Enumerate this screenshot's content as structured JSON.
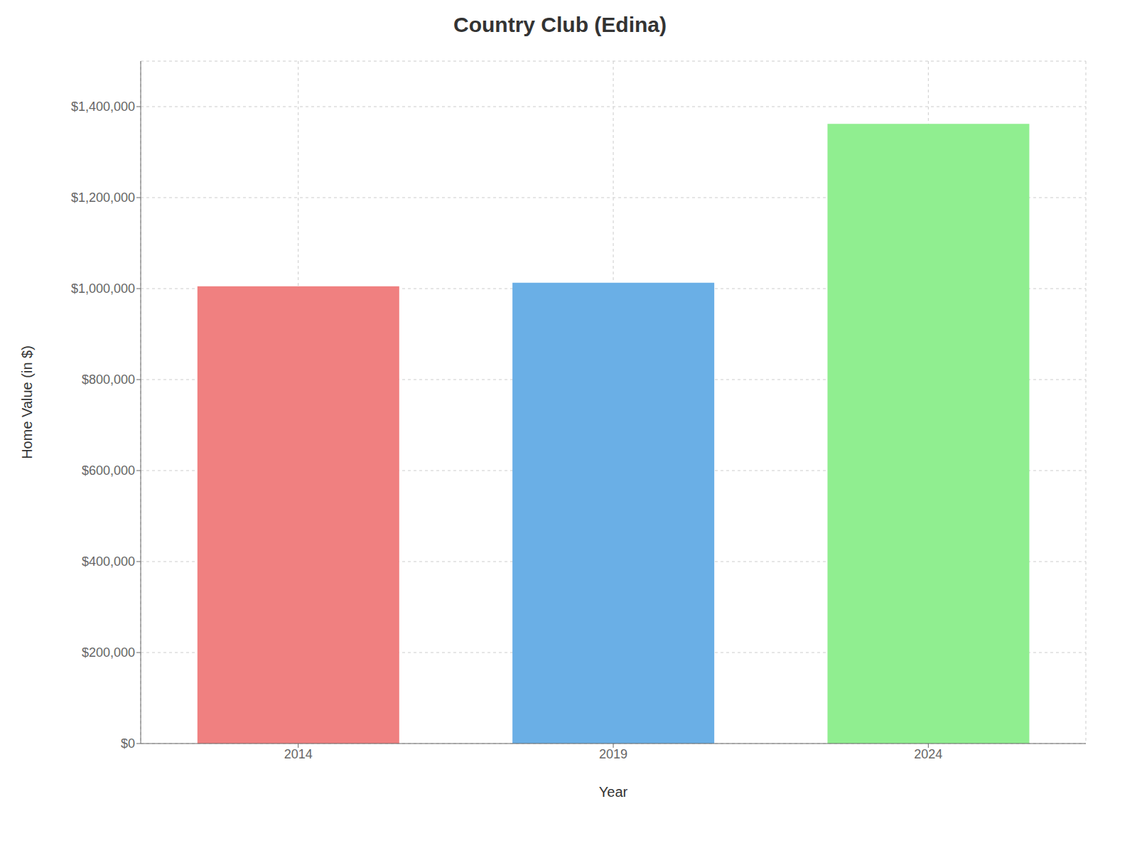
{
  "chart_data": {
    "type": "bar",
    "title": "Country Club (Edina)",
    "categories": [
      "2014",
      "2019",
      "2024"
    ],
    "values": [
      1005000,
      1013000,
      1362000
    ],
    "colors": [
      "#F08080",
      "#6AAFE6",
      "#90EE90"
    ],
    "xlabel": "Year",
    "ylabel": "Home Value (in $)",
    "ylim": [
      0,
      1500000
    ],
    "yticks": [
      {
        "value": 0,
        "label": "$0"
      },
      {
        "value": 200000,
        "label": "$200,000"
      },
      {
        "value": 400000,
        "label": "$400,000"
      },
      {
        "value": 600000,
        "label": "$600,000"
      },
      {
        "value": 800000,
        "label": "$800,000"
      },
      {
        "value": 1000000,
        "label": "$1,000,000"
      },
      {
        "value": 1200000,
        "label": "$1,200,000"
      },
      {
        "value": 1400000,
        "label": "$1,400,000"
      }
    ],
    "grid": true
  }
}
